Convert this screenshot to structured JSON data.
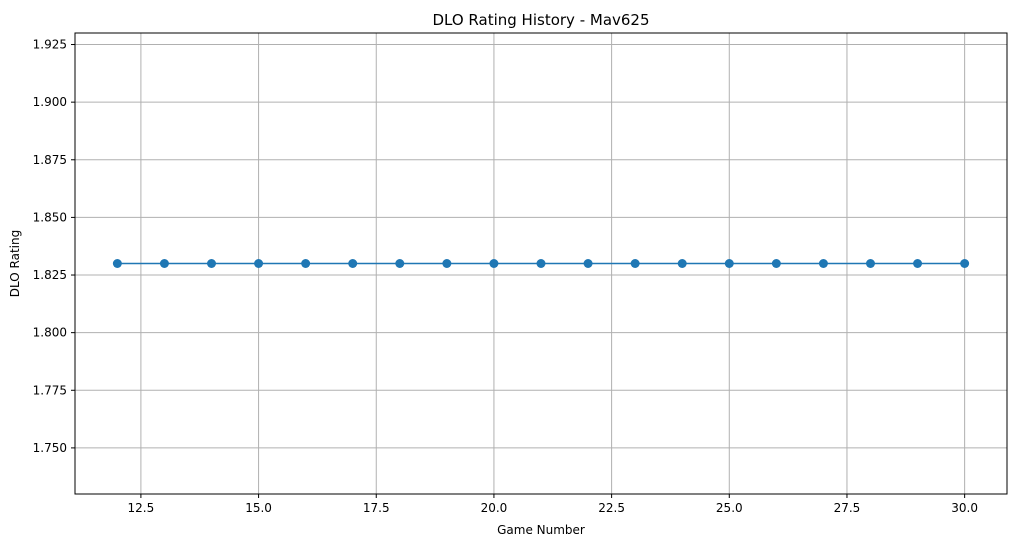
{
  "chart_data": {
    "type": "line",
    "title": "DLO Rating History - Mav625",
    "xlabel": "Game Number",
    "ylabel": "DLO Rating",
    "x": [
      12,
      13,
      14,
      15,
      16,
      17,
      18,
      19,
      20,
      21,
      22,
      23,
      24,
      25,
      26,
      27,
      28,
      29,
      30
    ],
    "series": [
      {
        "values": [
          1.83,
          1.83,
          1.83,
          1.83,
          1.83,
          1.83,
          1.83,
          1.83,
          1.83,
          1.83,
          1.83,
          1.83,
          1.83,
          1.83,
          1.83,
          1.83,
          1.83,
          1.83,
          1.83
        ],
        "color": "#1f77b4",
        "marker": "circle"
      }
    ],
    "xlim": [
      11.1,
      30.9
    ],
    "ylim": [
      1.73,
      1.93
    ],
    "xticks": [
      12.5,
      15.0,
      17.5,
      20.0,
      22.5,
      25.0,
      27.5,
      30.0
    ],
    "xtick_labels": [
      "12.5",
      "15.0",
      "17.5",
      "20.0",
      "22.5",
      "25.0",
      "27.5",
      "30.0"
    ],
    "yticks": [
      1.75,
      1.775,
      1.8,
      1.825,
      1.85,
      1.875,
      1.9,
      1.925
    ],
    "ytick_labels": [
      "1.750",
      "1.775",
      "1.800",
      "1.825",
      "1.850",
      "1.875",
      "1.900",
      "1.925"
    ],
    "grid": true
  }
}
